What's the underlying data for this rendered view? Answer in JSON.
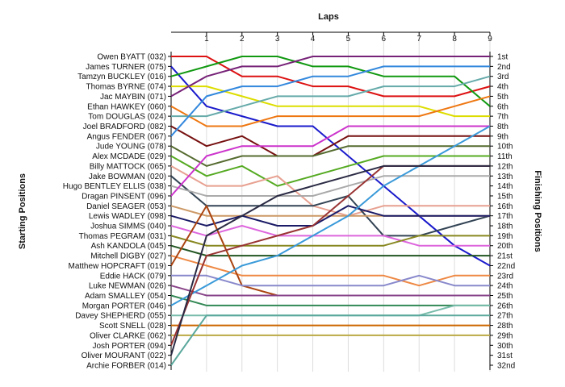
{
  "chart_data": {
    "type": "line",
    "title": "",
    "xlabel": "Laps",
    "ylabel_left": "Starting Positions",
    "ylabel_right": "Finishing Positions",
    "x": [
      0,
      1,
      2,
      3,
      4,
      5,
      6,
      7,
      8,
      9
    ],
    "x_tick_labels": [
      "1",
      "2",
      "3",
      "4",
      "5",
      "6",
      "7",
      "8",
      "9"
    ],
    "finishing_labels": [
      "1st",
      "2nd",
      "3rd",
      "4th",
      "5th",
      "6th",
      "7th",
      "8th",
      "9th",
      "10th",
      "11th",
      "12th",
      "13th",
      "14th",
      "15th",
      "16th",
      "17th",
      "18th",
      "19th",
      "20th",
      "21st",
      "22nd",
      "23rd",
      "24th",
      "25th",
      "26th",
      "27th",
      "28th",
      "29th",
      "30th",
      "31st",
      "32nd"
    ],
    "series": [
      {
        "name": "Owen BYATT (032)",
        "color": "#dd1111",
        "values": [
          1,
          1,
          3,
          3,
          4,
          4,
          5,
          5,
          5,
          4
        ]
      },
      {
        "name": "James TURNER (075)",
        "color": "#1a1acc",
        "values": [
          2,
          6,
          7,
          8,
          8,
          11,
          14,
          17,
          20,
          22
        ]
      },
      {
        "name": "Tamzyn BUCKLEY (016)",
        "color": "#119911",
        "values": [
          3,
          2,
          1,
          1,
          2,
          2,
          3,
          3,
          3,
          6
        ]
      },
      {
        "name": "Thomas BYRNE (074)",
        "color": "#dddd00",
        "values": [
          4,
          4,
          5,
          6,
          6,
          6,
          6,
          6,
          7,
          7
        ]
      },
      {
        "name": "Jac MAYBIN (071)",
        "color": "#772277",
        "values": [
          5,
          3,
          2,
          2,
          1,
          1,
          1,
          1,
          1,
          1
        ]
      },
      {
        "name": "Ethan HAWKEY (060)",
        "color": "#ee7711",
        "values": [
          6,
          8,
          8,
          7,
          7,
          7,
          7,
          7,
          6,
          5
        ]
      },
      {
        "name": "Tom DOUGLAS (024)",
        "color": "#66aaaa",
        "values": [
          7,
          7,
          6,
          5,
          5,
          5,
          4,
          4,
          4,
          3
        ]
      },
      {
        "name": "Joel BRADFORD (082)",
        "color": "#771111",
        "values": [
          8,
          10,
          9,
          11,
          11,
          9,
          9,
          9,
          9,
          9
        ]
      },
      {
        "name": "Angus FENDER (067)",
        "color": "#3388dd",
        "values": [
          9,
          5,
          4,
          4,
          3,
          3,
          2,
          2,
          2,
          2
        ]
      },
      {
        "name": "Jude YOUNG (078)",
        "color": "#556b2f",
        "values": [
          10,
          12,
          11,
          11,
          11,
          10,
          10,
          10,
          10,
          10
        ]
      },
      {
        "name": "Alex MCDADE (029)",
        "color": "#55aa22",
        "values": [
          11,
          13,
          12,
          14,
          13,
          12,
          11,
          11,
          11,
          11
        ]
      },
      {
        "name": "Billy MATTOCK (065)",
        "color": "#e7a090",
        "values": [
          12,
          14,
          14,
          13,
          16,
          17,
          16,
          16,
          16,
          16
        ]
      },
      {
        "name": "Jake BOWMAN (020)",
        "color": "#334455",
        "values": [
          13,
          16,
          16,
          16,
          16,
          15,
          19,
          19,
          18,
          17
        ]
      },
      {
        "name": "Hugo BENTLEY ELLIS (038)",
        "color": "#aaaaaa",
        "values": [
          14,
          15,
          15,
          15,
          15,
          14,
          13,
          13,
          13,
          13
        ]
      },
      {
        "name": "Dragan PINSENT (096)",
        "color": "#cc33cc",
        "values": [
          15,
          11,
          10,
          10,
          10,
          8,
          8,
          8,
          8,
          8
        ]
      },
      {
        "name": "Daniel SEAGER (053)",
        "color": "#cc9966",
        "values": [
          16,
          17,
          17,
          17,
          17,
          17,
          17,
          17,
          17,
          17
        ]
      },
      {
        "name": "Lewis WADLEY (098)",
        "color": "#1a1a66",
        "values": [
          17,
          18,
          17,
          18,
          18,
          16,
          17,
          17,
          17,
          17
        ]
      },
      {
        "name": "Joshua SIMMS (040)",
        "color": "#dd66dd",
        "values": [
          18,
          19,
          18,
          19,
          19,
          19,
          19,
          20,
          20,
          20
        ]
      },
      {
        "name": "Thomas PEGRAM (031)",
        "color": "#888822",
        "values": [
          19,
          20,
          20,
          20,
          20,
          20,
          20,
          19,
          19,
          19
        ]
      },
      {
        "name": "Ash KANDOLA (045)",
        "color": "#225522",
        "values": [
          20,
          21,
          21,
          21,
          21,
          21,
          21,
          21,
          21,
          21
        ]
      },
      {
        "name": "Mitchell DIGBY (027)",
        "color": "#ee8844",
        "values": [
          21,
          22,
          23,
          23,
          23,
          23,
          23,
          24,
          23,
          23
        ]
      },
      {
        "name": "Matthew HOPCRAFT (019)",
        "color": "#aa4411",
        "values": [
          22,
          16,
          24,
          25,
          25,
          25,
          25,
          25,
          25,
          25
        ]
      },
      {
        "name": "Eddie HACK (079)",
        "color": "#8888cc",
        "values": [
          23,
          23,
          24,
          24,
          24,
          24,
          24,
          23,
          24,
          24
        ]
      },
      {
        "name": "Luke NEWMAN (026)",
        "color": "#884488",
        "values": [
          24,
          25,
          25,
          25,
          25,
          25,
          25,
          25,
          25,
          25
        ]
      },
      {
        "name": "Adam SMALLEY (054)",
        "color": "#338855",
        "values": [
          25,
          26,
          26,
          26,
          26,
          26,
          26,
          26,
          26,
          26
        ]
      },
      {
        "name": "Morgan PORTER (046)",
        "color": "#3a9ad9",
        "values": [
          26,
          24,
          22,
          21,
          19,
          17,
          14,
          12,
          10,
          8
        ]
      },
      {
        "name": "Davey SHEPHERD (055)",
        "color": "#77bbaa",
        "values": [
          27,
          27,
          27,
          27,
          27,
          27,
          27,
          27,
          26,
          26
        ]
      },
      {
        "name": "Scott SNELL (028)",
        "color": "#cc6600",
        "values": [
          28,
          28,
          28,
          28,
          28,
          28,
          28,
          28,
          28,
          28
        ]
      },
      {
        "name": "Oliver CLARKE (062)",
        "color": "#bbaa44",
        "values": [
          29,
          29,
          29,
          29,
          29,
          29,
          29,
          29,
          29,
          29
        ]
      },
      {
        "name": "Josh PORTER (094)",
        "color": "#993333",
        "values": [
          30,
          21,
          20,
          19,
          18,
          15,
          12,
          12,
          12,
          12
        ]
      },
      {
        "name": "Oliver MOURANT (022)",
        "color": "#2a2a44",
        "values": [
          31,
          19,
          17,
          15,
          14,
          13,
          12,
          12,
          12,
          12
        ]
      },
      {
        "name": "Archie FORBER (014)",
        "color": "#5ba89c",
        "values": [
          32,
          27,
          27,
          27,
          27,
          27,
          27,
          27,
          27,
          27
        ]
      }
    ]
  }
}
